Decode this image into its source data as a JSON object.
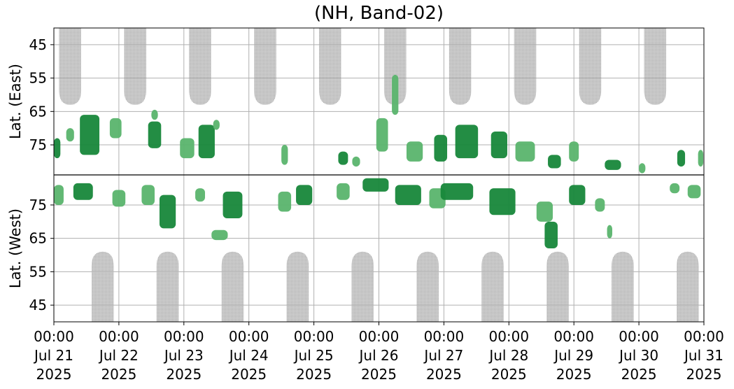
{
  "chart_data": {
    "type": "heatmap",
    "title": "(NH, Band-02)",
    "ylabel_top": "Lat. (East)",
    "ylabel_bottom": "Lat. (West)",
    "y_tick_labels_top": [
      "45",
      "55",
      "65",
      "75"
    ],
    "y_tick_labels_bottom": [
      "75",
      "65",
      "55",
      "45"
    ],
    "x_ticks": [
      {
        "time": "00:00",
        "date": "Jul 21",
        "year": "2025"
      },
      {
        "time": "00:00",
        "date": "Jul 22",
        "year": "2025"
      },
      {
        "time": "00:00",
        "date": "Jul 23",
        "year": "2025"
      },
      {
        "time": "00:00",
        "date": "Jul 24",
        "year": "2025"
      },
      {
        "time": "00:00",
        "date": "Jul 25",
        "year": "2025"
      },
      {
        "time": "00:00",
        "date": "Jul 26",
        "year": "2025"
      },
      {
        "time": "00:00",
        "date": "Jul 27",
        "year": "2025"
      },
      {
        "time": "00:00",
        "date": "Jul 28",
        "year": "2025"
      },
      {
        "time": "00:00",
        "date": "Jul 29",
        "year": "2025"
      },
      {
        "time": "00:00",
        "date": "Jul 30",
        "year": "2025"
      },
      {
        "time": "00:00",
        "date": "Jul 31",
        "year": "2025"
      }
    ],
    "x_range": [
      "2025-07-21 00:00",
      "2025-07-31 00:00"
    ],
    "lat_range": [
      40,
      84
    ],
    "grid": true,
    "colors": {
      "strong": "#17873a",
      "weak": "#5ab46d",
      "nodata": "#bdbdbd",
      "grid": "#b0b0b0",
      "center_line": "#000000"
    },
    "nodata_top": [
      {
        "center_day": 0.25,
        "half_width_days": 0.17,
        "min_lat": 63
      },
      {
        "center_day": 1.25,
        "half_width_days": 0.17,
        "min_lat": 63
      },
      {
        "center_day": 2.25,
        "half_width_days": 0.17,
        "min_lat": 63
      },
      {
        "center_day": 3.25,
        "half_width_days": 0.17,
        "min_lat": 63
      },
      {
        "center_day": 4.25,
        "half_width_days": 0.17,
        "min_lat": 63
      },
      {
        "center_day": 5.25,
        "half_width_days": 0.17,
        "min_lat": 63
      },
      {
        "center_day": 6.25,
        "half_width_days": 0.17,
        "min_lat": 63
      },
      {
        "center_day": 7.25,
        "half_width_days": 0.17,
        "min_lat": 63
      },
      {
        "center_day": 8.25,
        "half_width_days": 0.17,
        "min_lat": 63
      },
      {
        "center_day": 9.25,
        "half_width_days": 0.17,
        "min_lat": 63
      }
    ],
    "nodata_bottom": [
      {
        "center_day": 0.75,
        "half_width_days": 0.17,
        "min_lat": 61
      },
      {
        "center_day": 1.75,
        "half_width_days": 0.17,
        "min_lat": 61
      },
      {
        "center_day": 2.75,
        "half_width_days": 0.17,
        "min_lat": 61
      },
      {
        "center_day": 3.75,
        "half_width_days": 0.17,
        "min_lat": 61
      },
      {
        "center_day": 4.75,
        "half_width_days": 0.17,
        "min_lat": 61
      },
      {
        "center_day": 5.75,
        "half_width_days": 0.17,
        "min_lat": 61
      },
      {
        "center_day": 6.75,
        "half_width_days": 0.17,
        "min_lat": 61
      },
      {
        "center_day": 7.75,
        "half_width_days": 0.17,
        "min_lat": 61
      },
      {
        "center_day": 8.75,
        "half_width_days": 0.17,
        "min_lat": 61
      },
      {
        "center_day": 9.75,
        "half_width_days": 0.17,
        "min_lat": 61
      }
    ],
    "activity_top": [
      {
        "x_days": 0.05,
        "lat": 76,
        "width_days": 0.1,
        "lat_span": 6,
        "level": "strong"
      },
      {
        "x_days": 0.25,
        "lat": 72,
        "width_days": 0.12,
        "lat_span": 4,
        "level": "weak"
      },
      {
        "x_days": 0.55,
        "lat": 72,
        "width_days": 0.3,
        "lat_span": 12,
        "level": "strong"
      },
      {
        "x_days": 0.95,
        "lat": 70,
        "width_days": 0.18,
        "lat_span": 6,
        "level": "weak"
      },
      {
        "x_days": 1.55,
        "lat": 72,
        "width_days": 0.2,
        "lat_span": 8,
        "level": "strong"
      },
      {
        "x_days": 1.55,
        "lat": 66,
        "width_days": 0.1,
        "lat_span": 3,
        "level": "weak"
      },
      {
        "x_days": 2.05,
        "lat": 76,
        "width_days": 0.22,
        "lat_span": 6,
        "level": "weak"
      },
      {
        "x_days": 2.35,
        "lat": 74,
        "width_days": 0.25,
        "lat_span": 10,
        "level": "strong"
      },
      {
        "x_days": 2.5,
        "lat": 69,
        "width_days": 0.1,
        "lat_span": 3,
        "level": "weak"
      },
      {
        "x_days": 3.55,
        "lat": 78,
        "width_days": 0.1,
        "lat_span": 6,
        "level": "weak"
      },
      {
        "x_days": 4.45,
        "lat": 79,
        "width_days": 0.15,
        "lat_span": 4,
        "level": "strong"
      },
      {
        "x_days": 4.65,
        "lat": 80,
        "width_days": 0.12,
        "lat_span": 3,
        "level": "weak"
      },
      {
        "x_days": 5.05,
        "lat": 72,
        "width_days": 0.18,
        "lat_span": 10,
        "level": "weak"
      },
      {
        "x_days": 5.25,
        "lat": 60,
        "width_days": 0.1,
        "lat_span": 12,
        "level": "weak"
      },
      {
        "x_days": 5.55,
        "lat": 77,
        "width_days": 0.25,
        "lat_span": 6,
        "level": "weak"
      },
      {
        "x_days": 5.95,
        "lat": 76,
        "width_days": 0.2,
        "lat_span": 8,
        "level": "strong"
      },
      {
        "x_days": 6.35,
        "lat": 74,
        "width_days": 0.35,
        "lat_span": 10,
        "level": "strong"
      },
      {
        "x_days": 6.85,
        "lat": 75,
        "width_days": 0.25,
        "lat_span": 8,
        "level": "strong"
      },
      {
        "x_days": 7.25,
        "lat": 77,
        "width_days": 0.3,
        "lat_span": 6,
        "level": "weak"
      },
      {
        "x_days": 7.7,
        "lat": 80,
        "width_days": 0.2,
        "lat_span": 4,
        "level": "strong"
      },
      {
        "x_days": 8.0,
        "lat": 77,
        "width_days": 0.15,
        "lat_span": 6,
        "level": "weak"
      },
      {
        "x_days": 8.6,
        "lat": 81,
        "width_days": 0.25,
        "lat_span": 3,
        "level": "strong"
      },
      {
        "x_days": 9.05,
        "lat": 82,
        "width_days": 0.1,
        "lat_span": 3,
        "level": "weak"
      },
      {
        "x_days": 9.65,
        "lat": 79,
        "width_days": 0.12,
        "lat_span": 5,
        "level": "strong"
      },
      {
        "x_days": 9.95,
        "lat": 79,
        "width_days": 0.08,
        "lat_span": 5,
        "level": "weak"
      }
    ],
    "activity_bottom": [
      {
        "x_days": 0.05,
        "lat": 78,
        "width_days": 0.15,
        "lat_span": 6,
        "level": "weak"
      },
      {
        "x_days": 0.45,
        "lat": 79,
        "width_days": 0.3,
        "lat_span": 5,
        "level": "strong"
      },
      {
        "x_days": 1.0,
        "lat": 77,
        "width_days": 0.2,
        "lat_span": 5,
        "level": "weak"
      },
      {
        "x_days": 1.45,
        "lat": 78,
        "width_days": 0.2,
        "lat_span": 6,
        "level": "weak"
      },
      {
        "x_days": 1.75,
        "lat": 73,
        "width_days": 0.25,
        "lat_span": 10,
        "level": "strong"
      },
      {
        "x_days": 2.25,
        "lat": 78,
        "width_days": 0.15,
        "lat_span": 4,
        "level": "weak"
      },
      {
        "x_days": 2.55,
        "lat": 66,
        "width_days": 0.25,
        "lat_span": 3,
        "level": "weak"
      },
      {
        "x_days": 2.75,
        "lat": 75,
        "width_days": 0.3,
        "lat_span": 8,
        "level": "strong"
      },
      {
        "x_days": 3.55,
        "lat": 76,
        "width_days": 0.2,
        "lat_span": 6,
        "level": "weak"
      },
      {
        "x_days": 3.85,
        "lat": 78,
        "width_days": 0.25,
        "lat_span": 6,
        "level": "strong"
      },
      {
        "x_days": 4.45,
        "lat": 79,
        "width_days": 0.2,
        "lat_span": 5,
        "level": "weak"
      },
      {
        "x_days": 4.95,
        "lat": 81,
        "width_days": 0.4,
        "lat_span": 4,
        "level": "strong"
      },
      {
        "x_days": 5.45,
        "lat": 78,
        "width_days": 0.4,
        "lat_span": 6,
        "level": "strong"
      },
      {
        "x_days": 5.9,
        "lat": 77,
        "width_days": 0.25,
        "lat_span": 6,
        "level": "weak"
      },
      {
        "x_days": 6.2,
        "lat": 79,
        "width_days": 0.5,
        "lat_span": 5,
        "level": "strong"
      },
      {
        "x_days": 6.9,
        "lat": 76,
        "width_days": 0.4,
        "lat_span": 8,
        "level": "strong"
      },
      {
        "x_days": 7.55,
        "lat": 73,
        "width_days": 0.25,
        "lat_span": 6,
        "level": "weak"
      },
      {
        "x_days": 7.65,
        "lat": 66,
        "width_days": 0.2,
        "lat_span": 8,
        "level": "strong"
      },
      {
        "x_days": 8.05,
        "lat": 78,
        "width_days": 0.25,
        "lat_span": 6,
        "level": "strong"
      },
      {
        "x_days": 8.4,
        "lat": 75,
        "width_days": 0.15,
        "lat_span": 4,
        "level": "weak"
      },
      {
        "x_days": 8.55,
        "lat": 67,
        "width_days": 0.08,
        "lat_span": 4,
        "level": "weak"
      },
      {
        "x_days": 9.55,
        "lat": 80,
        "width_days": 0.15,
        "lat_span": 3,
        "level": "weak"
      },
      {
        "x_days": 9.85,
        "lat": 79,
        "width_days": 0.2,
        "lat_span": 4,
        "level": "weak"
      }
    ]
  }
}
